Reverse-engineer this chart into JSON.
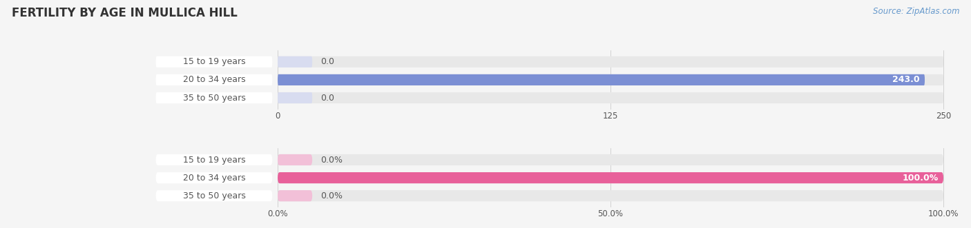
{
  "title": "FERTILITY BY AGE IN MULLICA HILL",
  "source": "Source: ZipAtlas.com",
  "top_chart": {
    "categories": [
      "15 to 19 years",
      "20 to 34 years",
      "35 to 50 years"
    ],
    "values": [
      0.0,
      243.0,
      0.0
    ],
    "bar_color_full": "#7b8fd4",
    "bar_color_empty": "#d8dcf0",
    "xlim_max": 250.0,
    "xticks": [
      0.0,
      125.0,
      250.0
    ],
    "value_labels": [
      "0.0",
      "243.0",
      "0.0"
    ]
  },
  "bottom_chart": {
    "categories": [
      "15 to 19 years",
      "20 to 34 years",
      "35 to 50 years"
    ],
    "values": [
      0.0,
      100.0,
      0.0
    ],
    "bar_color_full": "#e8609a",
    "bar_color_empty": "#f2c0d8",
    "xlim_max": 100.0,
    "xticks": [
      0.0,
      50.0,
      100.0
    ],
    "xticklabels": [
      "0.0%",
      "50.0%",
      "100.0%"
    ],
    "value_labels": [
      "0.0%",
      "100.0%",
      "0.0%"
    ]
  },
  "background_color": "#f5f5f5",
  "bar_bg_color": "#e8e8e8",
  "label_color": "#555555",
  "title_color": "#333333",
  "bar_height": 0.62,
  "label_fontsize": 9.0,
  "title_fontsize": 12,
  "value_fontsize": 9.0
}
